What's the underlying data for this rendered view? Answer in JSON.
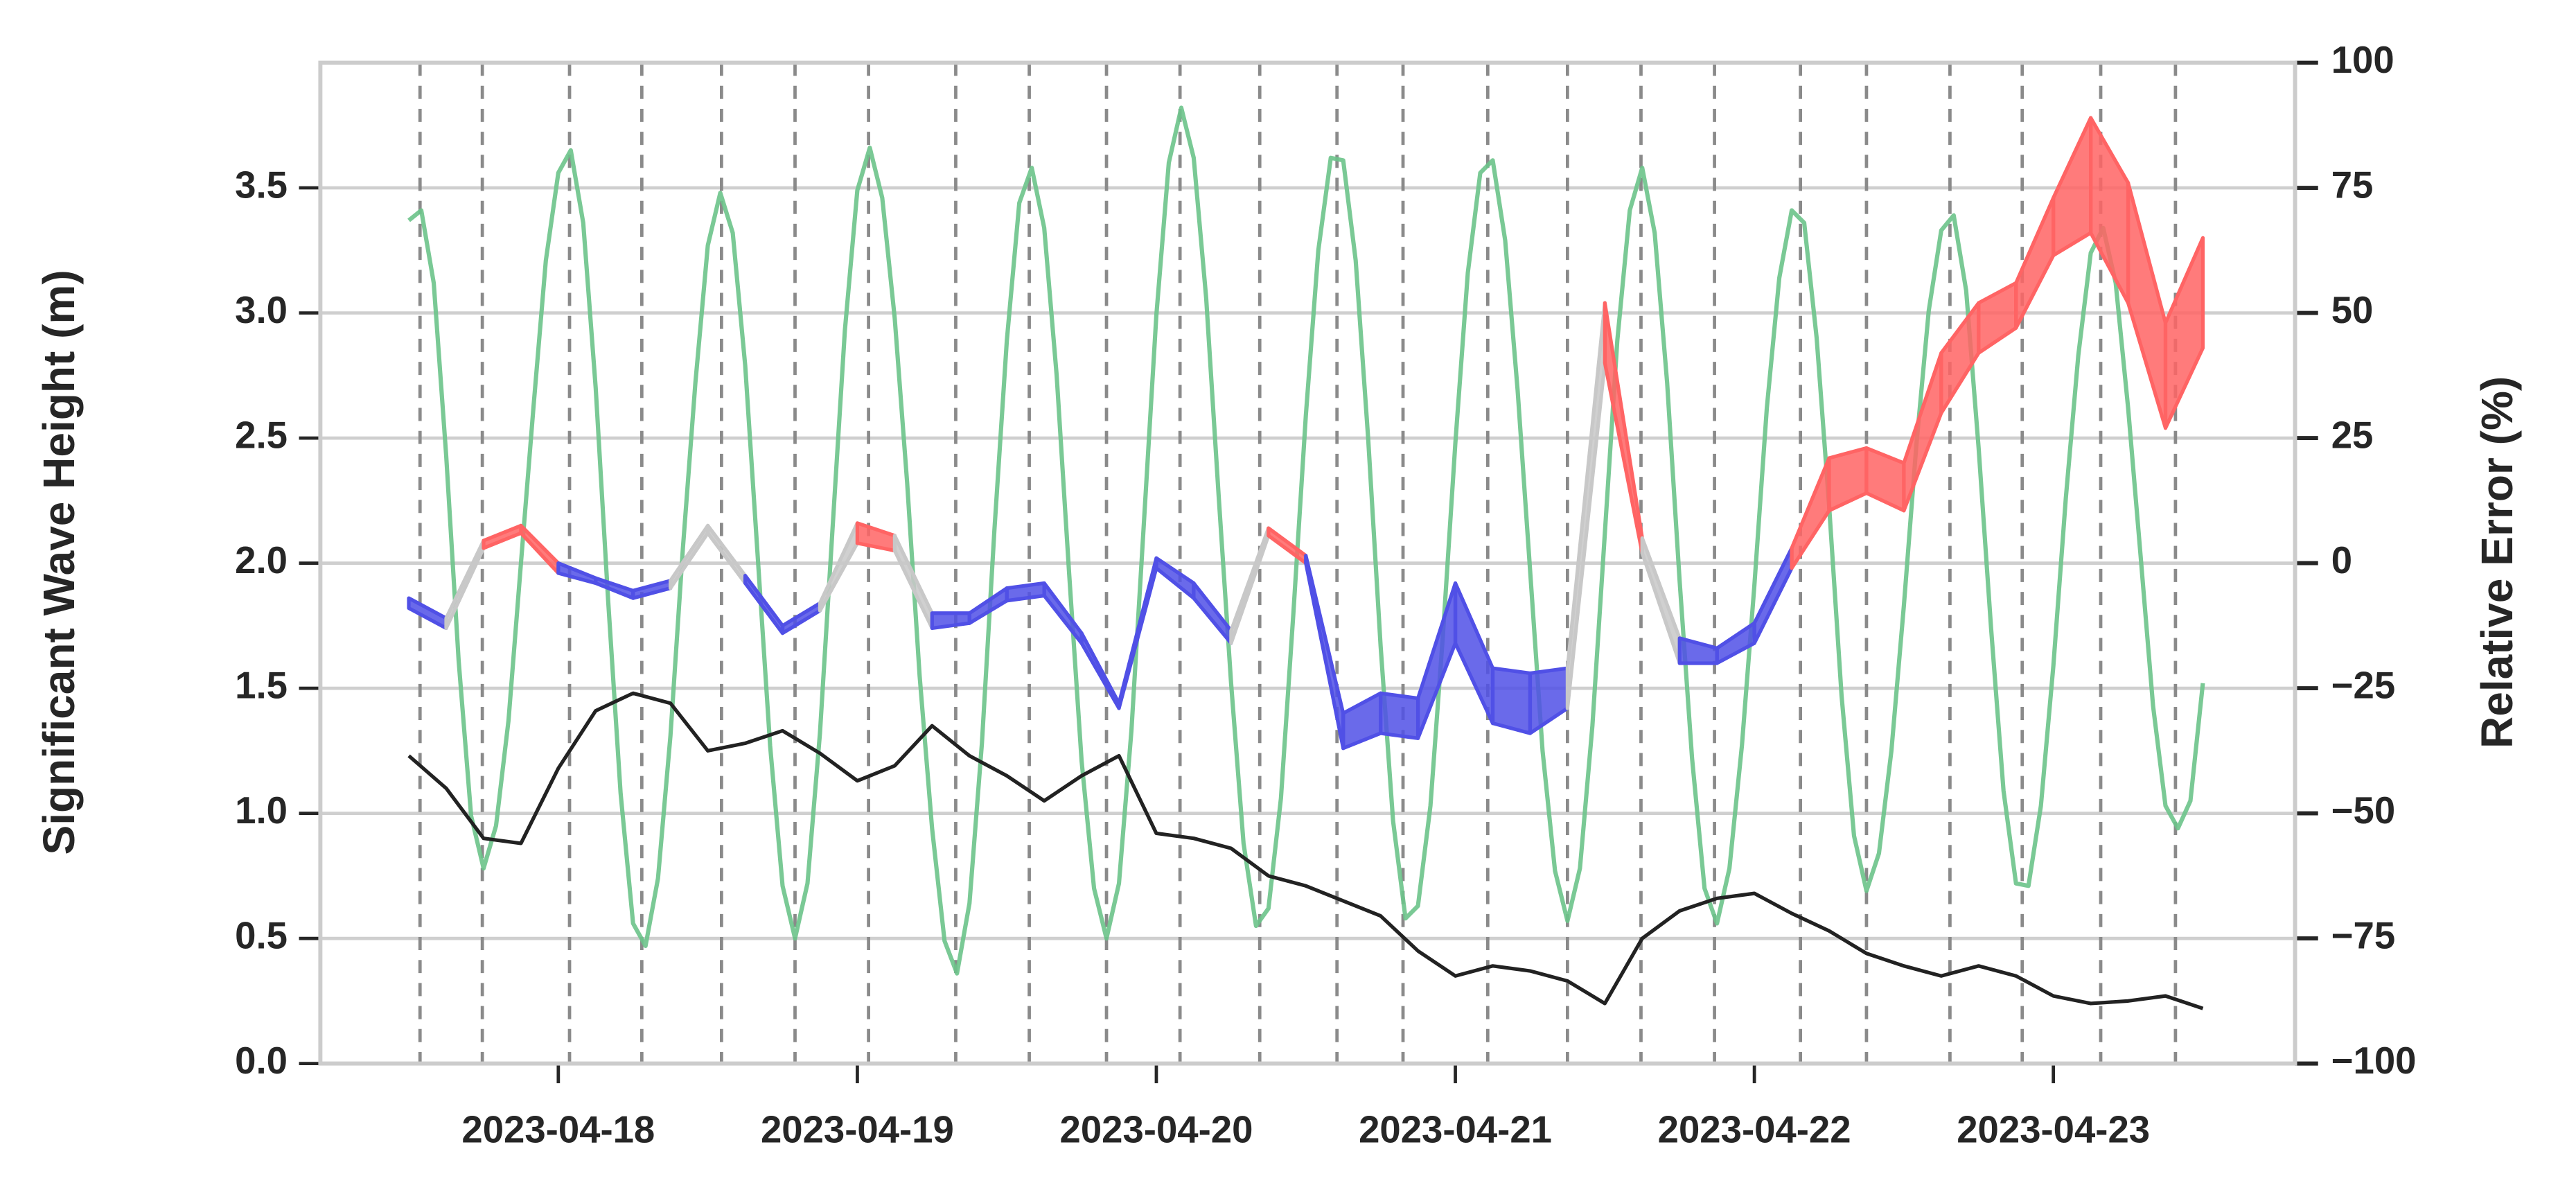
{
  "chart_data": {
    "type": "line",
    "ylabel": "Significant Wave Height (m)",
    "y2label": "Relative Error (%)",
    "grid": true,
    "xlim": [
      4.9,
      163.4
    ],
    "xticks": [
      {
        "value": 24,
        "label": "2023-04-18"
      },
      {
        "value": 48,
        "label": "2023-04-19"
      },
      {
        "value": 72,
        "label": "2023-04-20"
      },
      {
        "value": 96,
        "label": "2023-04-21"
      },
      {
        "value": 120,
        "label": "2023-04-22"
      },
      {
        "value": 144,
        "label": "2023-04-23"
      }
    ],
    "ylim": [
      0,
      4.0
    ],
    "yticks": [
      {
        "value": 0,
        "label": "0.0"
      },
      0.5,
      {
        "value": 1,
        "label": "1.0"
      },
      1.5,
      {
        "value": 2,
        "label": "2.0"
      },
      2.5,
      {
        "value": 3,
        "label": "3.0"
      },
      3.5
    ],
    "y2lim": [
      -100,
      100
    ],
    "y2ticks": [
      {
        "value": -100,
        "label": "−100"
      },
      {
        "value": -75,
        "label": "−75"
      },
      {
        "value": -50,
        "label": "−50"
      },
      {
        "value": -25,
        "label": "−25"
      },
      0,
      25,
      50,
      75,
      100
    ],
    "series": [
      {
        "color": "#6cc38a",
        "x": [
          12,
          13,
          14,
          15,
          16,
          17,
          18,
          19,
          20,
          21,
          22,
          23,
          24,
          25,
          26,
          27,
          28,
          29,
          30,
          31,
          32,
          33,
          34,
          35,
          36,
          37,
          38,
          39,
          40,
          41,
          42,
          43,
          44,
          45,
          46,
          47,
          48,
          49,
          50,
          51,
          52,
          53,
          54,
          55,
          56,
          57,
          58,
          59,
          60,
          61,
          62,
          63,
          64,
          65,
          66,
          67,
          68,
          69,
          70,
          71,
          72,
          73,
          74,
          75,
          76,
          77,
          78,
          79,
          80,
          81,
          82,
          83,
          84,
          85,
          86,
          87,
          88,
          89,
          90,
          91,
          92,
          93,
          94,
          95,
          96,
          97,
          98,
          99,
          100,
          101,
          102,
          103,
          104,
          105,
          106,
          107,
          108,
          109,
          110,
          111,
          112,
          113,
          114,
          115,
          116,
          117,
          118,
          119,
          120,
          121,
          122,
          123,
          124,
          125,
          126,
          127,
          128,
          129,
          130,
          131,
          132,
          133,
          134,
          135,
          136,
          137,
          138,
          139,
          140,
          141,
          142,
          143,
          144,
          145,
          146,
          147,
          148,
          149,
          150,
          151,
          152,
          153,
          154,
          155,
          156
        ],
        "values": [
          3.37,
          3.41,
          3.12,
          2.43,
          1.61,
          0.99,
          0.78,
          0.95,
          1.37,
          2.0,
          2.62,
          3.21,
          3.56,
          3.65,
          3.36,
          2.7,
          1.85,
          1.08,
          0.56,
          0.47,
          0.74,
          1.31,
          2.06,
          2.72,
          3.27,
          3.48,
          3.32,
          2.79,
          2.03,
          1.27,
          0.71,
          0.5,
          0.72,
          1.32,
          2.13,
          2.93,
          3.49,
          3.66,
          3.46,
          2.98,
          2.32,
          1.55,
          0.94,
          0.49,
          0.36,
          0.64,
          1.28,
          2.13,
          2.89,
          3.44,
          3.58,
          3.34,
          2.75,
          1.96,
          1.21,
          0.7,
          0.5,
          0.72,
          1.33,
          2.16,
          2.99,
          3.6,
          3.82,
          3.62,
          3.06,
          2.27,
          1.52,
          0.88,
          0.55,
          0.62,
          1.06,
          1.8,
          2.59,
          3.25,
          3.62,
          3.61,
          3.21,
          2.5,
          1.67,
          0.97,
          0.58,
          0.63,
          1.03,
          1.71,
          2.48,
          3.16,
          3.56,
          3.61,
          3.29,
          2.69,
          1.97,
          1.25,
          0.77,
          0.57,
          0.78,
          1.35,
          2.12,
          2.89,
          3.41,
          3.58,
          3.32,
          2.72,
          1.93,
          1.22,
          0.7,
          0.56,
          0.78,
          1.27,
          1.91,
          2.62,
          3.14,
          3.41,
          3.36,
          2.9,
          2.23,
          1.47,
          0.91,
          0.69,
          0.84,
          1.25,
          1.83,
          2.47,
          3.01,
          3.33,
          3.39,
          3.09,
          2.46,
          1.74,
          1.09,
          0.72,
          0.71,
          1.03,
          1.59,
          2.26,
          2.83,
          3.24,
          3.34,
          3.12,
          2.62,
          2.03,
          1.43,
          1.03,
          0.94,
          1.05,
          1.52
        ]
      },
      {
        "color": "#222222",
        "x": [
          12,
          15,
          18,
          21,
          24,
          27,
          30,
          33,
          36,
          39,
          42,
          45,
          48,
          51,
          54,
          57,
          60,
          63,
          66,
          69,
          72,
          75,
          78,
          81,
          84,
          87,
          90,
          93,
          96,
          99,
          102,
          105,
          108,
          111,
          114,
          117,
          120,
          123,
          126,
          129,
          132,
          135,
          138,
          141,
          144,
          147,
          150,
          153,
          156
        ],
        "values": [
          1.23,
          1.1,
          0.9,
          0.88,
          1.18,
          1.41,
          1.48,
          1.44,
          1.25,
          1.28,
          1.33,
          1.24,
          1.13,
          1.19,
          1.35,
          1.23,
          1.15,
          1.05,
          1.15,
          1.23,
          0.92,
          0.9,
          0.86,
          0.75,
          0.71,
          0.65,
          0.59,
          0.45,
          0.35,
          0.39,
          0.37,
          0.33,
          0.24,
          0.5,
          0.61,
          0.66,
          0.68,
          0.6,
          0.53,
          0.44,
          0.39,
          0.35,
          0.39,
          0.35,
          0.27,
          0.24,
          0.25,
          0.27,
          0.22
        ]
      }
    ],
    "error_band": {
      "axis": "y2",
      "x": [
        12,
        15,
        18,
        21,
        24,
        27,
        30,
        33,
        36,
        39,
        42,
        45,
        48,
        51,
        54,
        57,
        60,
        63,
        66,
        69,
        72,
        75,
        78,
        81,
        84,
        87,
        90,
        93,
        96,
        99,
        102,
        105,
        108,
        111,
        114,
        117,
        120,
        123,
        126,
        129,
        132,
        135,
        138,
        141,
        144,
        147,
        150,
        153,
        156
      ],
      "lower": [
        -9,
        -13,
        3,
        6,
        -2,
        -4,
        -7,
        -5,
        6,
        -4,
        -14,
        -9.5,
        4,
        2.5,
        -13,
        -12,
        -7.5,
        -6.5,
        -16,
        -29,
        -1,
        -7,
        -16,
        5.5,
        0,
        -37,
        -34,
        -35,
        -16,
        -32,
        -34,
        -29,
        40,
        2,
        -20,
        -20,
        -16,
        -1,
        10.5,
        14,
        10.5,
        30,
        42,
        47,
        61.5,
        66,
        52,
        27,
        43
      ],
      "upper": [
        -7,
        -11,
        4.5,
        7.5,
        0,
        -3,
        -5.5,
        -3.5,
        7.5,
        -2.5,
        -12.5,
        -8,
        8,
        5.5,
        -10,
        -10,
        -5,
        -4,
        -14,
        -28,
        1,
        -4,
        -13.5,
        7,
        1.5,
        -30,
        -26,
        -27,
        -4,
        -21,
        -22,
        -21,
        52,
        5,
        -15,
        -17,
        -12,
        3,
        21,
        23,
        20,
        42,
        52,
        56,
        73,
        89,
        76,
        48,
        65
      ],
      "segment_colors": [
        "#5050e6",
        "#c8c8c8",
        "#ff6464",
        "#ff6464",
        "#5050e6",
        "#5050e6",
        "#5050e6",
        "#c8c8c8",
        "#c8c8c8",
        "#5050e6",
        "#5050e6",
        "#c8c8c8",
        "#ff6464",
        "#c8c8c8",
        "#5050e6",
        "#5050e6",
        "#5050e6",
        "#5050e6",
        "#5050e6",
        "#5050e6",
        "#5050e6",
        "#5050e6",
        "#c8c8c8",
        "#ff6464",
        "#5050e6",
        "#5050e6",
        "#5050e6",
        "#5050e6",
        "#5050e6",
        "#5050e6",
        "#5050e6",
        "#c8c8c8",
        "#ff6464",
        "#c8c8c8",
        "#5050e6",
        "#5050e6",
        "#5050e6",
        "#ff6464",
        "#ff6464",
        "#ff6464",
        "#ff6464",
        "#ff6464",
        "#ff6464",
        "#ff6464",
        "#ff6464",
        "#ff6464",
        "#ff6464",
        "#ff6464"
      ]
    },
    "vlines": {
      "color": "#8a8a8a",
      "x": [
        12.9,
        17.9,
        24.9,
        30.7,
        37.1,
        43,
        48.9,
        55.9,
        61.8,
        68,
        73.9,
        80.3,
        86.5,
        91.8,
        98.6,
        105,
        110.9,
        116.8,
        123.7,
        129,
        135.7,
        141.5,
        147.8,
        153.8
      ]
    }
  }
}
